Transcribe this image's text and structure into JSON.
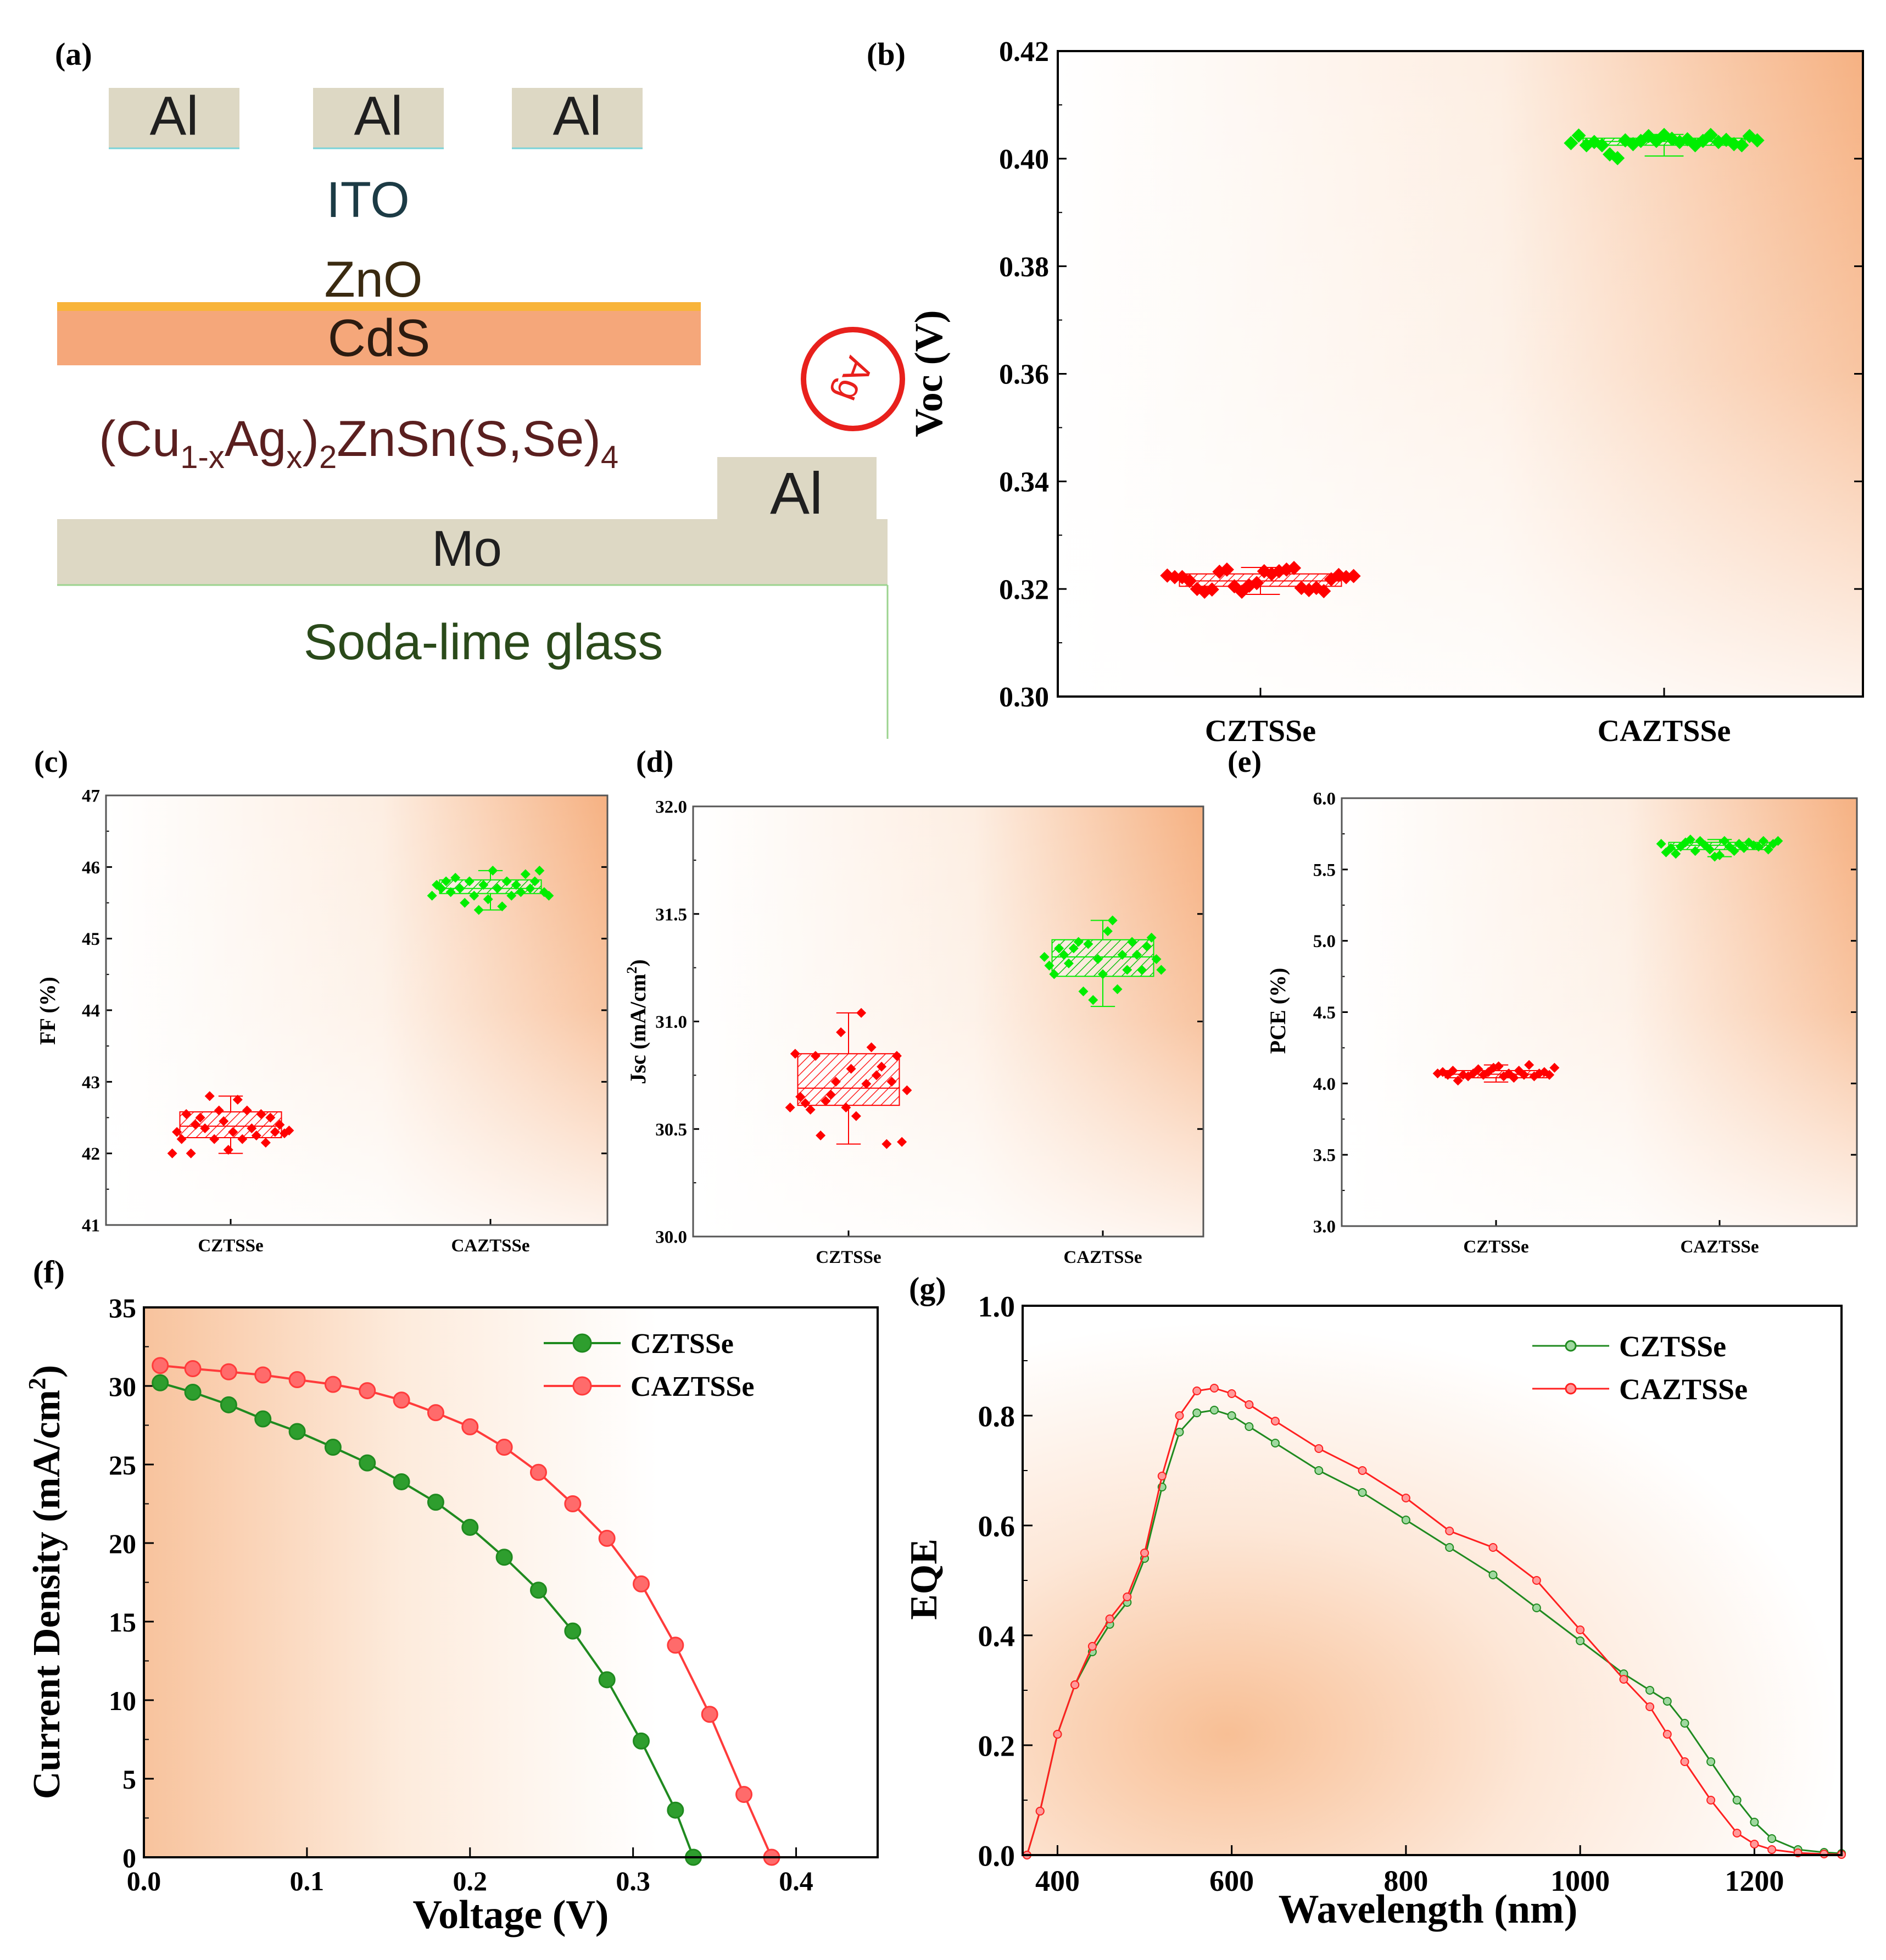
{
  "figure": {
    "panel_labels": {
      "a": "(a)",
      "b": "(b)",
      "c": "(c)",
      "d": "(d)",
      "e": "(e)",
      "f": "(f)",
      "g": "(g)"
    }
  },
  "device": {
    "top_contacts": [
      "Al",
      "Al",
      "Al"
    ],
    "ito": "ITO",
    "zno": "ZnO",
    "cds": "CdS",
    "absorber": {
      "prefix": "(Cu",
      "sub1": "1-x",
      "mid": "Ag",
      "sub2": "x",
      "mid2": ")",
      "sub3": "2",
      "tail": "ZnSn(S,Se)",
      "sub4": "4"
    },
    "side_contact": "Al",
    "back_contact": "Mo",
    "substrate": "Soda-lime glass",
    "ag_badge": "Ag",
    "colors": {
      "contact": "#ddd8c4",
      "cds": "#f5a77a",
      "cds_top": "#f8b43a",
      "ag": "#e8201c"
    }
  },
  "chart_data": [
    {
      "id": "b",
      "type": "box",
      "categories": [
        "CZTSSe",
        "CAZTSSe"
      ],
      "title": "",
      "xlabel": "",
      "ylabel": "Voc (V)",
      "ylim": [
        0.3,
        0.42
      ],
      "yticks": [
        "0.30",
        "0.32",
        "0.34",
        "0.36",
        "0.38",
        "0.40",
        "0.42"
      ],
      "groups": [
        {
          "name": "CZTSSe",
          "color": "#ff0000",
          "q1": 0.3205,
          "median": 0.3215,
          "q3": 0.3228,
          "whisker_low": 0.319,
          "whisker_high": 0.324,
          "points": [
            0.3225,
            0.3222,
            0.3222,
            0.3215,
            0.32,
            0.3195,
            0.3199,
            0.3232,
            0.3236,
            0.3205,
            0.3195,
            0.3206,
            0.3211,
            0.3233,
            0.3228,
            0.3233,
            0.3236,
            0.3239,
            0.3202,
            0.3198,
            0.3202,
            0.3196,
            0.3218,
            0.3226,
            0.3222,
            0.3224
          ]
        },
        {
          "name": "CAZTSSe",
          "color": "#00ee00",
          "q1": 0.4025,
          "median": 0.4032,
          "q3": 0.4038,
          "whisker_low": 0.4005,
          "whisker_high": 0.4045,
          "points": [
            0.4029,
            0.4043,
            0.4025,
            0.4031,
            0.4025,
            0.4008,
            0.4001,
            0.4034,
            0.4027,
            0.4033,
            0.4042,
            0.4033,
            0.4044,
            0.4037,
            0.4031,
            0.4036,
            0.4025,
            0.4033,
            0.4044,
            0.4031,
            0.4035,
            0.4027,
            0.4025,
            0.4042,
            0.4034
          ]
        }
      ]
    },
    {
      "id": "c",
      "type": "box",
      "categories": [
        "CZTSSe",
        "CAZTSSe"
      ],
      "title": "",
      "xlabel": "",
      "ylabel": "FF (%)",
      "ylim": [
        41,
        47
      ],
      "yticks": [
        "41",
        "42",
        "43",
        "44",
        "45",
        "46",
        "47"
      ],
      "groups": [
        {
          "name": "CZTSSe",
          "color": "#ff0000",
          "q1": 42.22,
          "median": 42.38,
          "q3": 42.58,
          "whisker_low": 42.0,
          "whisker_high": 42.8,
          "points": [
            42.0,
            42.3,
            42.2,
            42.55,
            42.0,
            42.4,
            42.5,
            42.35,
            42.8,
            42.2,
            42.6,
            42.45,
            42.05,
            42.3,
            42.75,
            42.2,
            42.6,
            42.35,
            42.25,
            42.55,
            42.15,
            42.5,
            42.3,
            42.4,
            42.28,
            42.32
          ]
        },
        {
          "name": "CAZTSSe",
          "color": "#00ee00",
          "q1": 45.63,
          "median": 45.7,
          "q3": 45.82,
          "whisker_low": 45.4,
          "whisker_high": 45.95,
          "points": [
            45.6,
            45.75,
            45.7,
            45.8,
            45.65,
            45.85,
            45.7,
            45.5,
            45.8,
            45.6,
            45.4,
            45.75,
            45.55,
            45.95,
            45.7,
            45.45,
            45.8,
            45.6,
            45.75,
            45.65,
            45.9,
            45.7,
            45.8,
            45.95,
            45.65,
            45.6
          ]
        }
      ]
    },
    {
      "id": "d",
      "type": "box",
      "categories": [
        "CZTSSe",
        "CAZTSSe"
      ],
      "title": "",
      "xlabel": "",
      "ylabel": "Jsc (mA/cm2)",
      "ylim": [
        30.0,
        32.0
      ],
      "yticks": [
        "30.0",
        "30.5",
        "31.0",
        "31.5",
        "32.0"
      ],
      "groups": [
        {
          "name": "CZTSSe",
          "color": "#ff0000",
          "q1": 30.61,
          "median": 30.69,
          "q3": 30.85,
          "whisker_low": 30.43,
          "whisker_high": 31.04,
          "points": [
            30.6,
            30.85,
            30.65,
            30.62,
            30.59,
            30.84,
            30.47,
            30.63,
            30.66,
            30.72,
            30.95,
            30.6,
            30.78,
            30.56,
            31.04,
            30.71,
            30.88,
            30.75,
            30.79,
            30.43,
            30.72,
            30.84,
            30.44,
            30.68
          ]
        },
        {
          "name": "CAZTSSe",
          "color": "#00ee00",
          "q1": 31.21,
          "median": 31.3,
          "q3": 31.38,
          "whisker_low": 31.07,
          "whisker_high": 31.47,
          "points": [
            31.3,
            31.26,
            31.22,
            31.34,
            31.31,
            31.27,
            31.34,
            31.37,
            31.14,
            31.36,
            31.1,
            31.29,
            31.22,
            31.42,
            31.47,
            31.15,
            31.31,
            31.24,
            31.37,
            31.31,
            31.24,
            31.35,
            31.39,
            31.29,
            31.24
          ]
        }
      ]
    },
    {
      "id": "e",
      "type": "box",
      "categories": [
        "CZTSSe",
        "CAZTSSe"
      ],
      "title": "",
      "xlabel": "",
      "ylabel": "PCE (%)",
      "ylim": [
        3.0,
        6.0
      ],
      "yticks": [
        "3.0",
        "3.5",
        "4.0",
        "4.5",
        "5.0",
        "5.5",
        "6.0"
      ],
      "groups": [
        {
          "name": "CZTSSe",
          "color": "#ff0000",
          "q1": 4.04,
          "median": 4.065,
          "q3": 4.09,
          "whisker_low": 4.01,
          "whisker_high": 4.13,
          "points": [
            4.07,
            4.08,
            4.06,
            4.09,
            4.02,
            4.06,
            4.05,
            4.07,
            4.1,
            4.06,
            4.08,
            4.11,
            4.12,
            4.05,
            4.07,
            4.04,
            4.09,
            4.06,
            4.13,
            4.05,
            4.07,
            4.08,
            4.06,
            4.11
          ]
        },
        {
          "name": "CAZTSSe",
          "color": "#00ee00",
          "q1": 5.64,
          "median": 5.67,
          "q3": 5.69,
          "whisker_low": 5.59,
          "whisker_high": 5.71,
          "points": [
            5.68,
            5.62,
            5.65,
            5.61,
            5.66,
            5.69,
            5.71,
            5.63,
            5.7,
            5.67,
            5.64,
            5.59,
            5.6,
            5.7,
            5.66,
            5.63,
            5.68,
            5.65,
            5.69,
            5.67,
            5.66,
            5.7,
            5.64,
            5.68,
            5.7
          ]
        }
      ]
    },
    {
      "id": "f",
      "type": "line",
      "title": "",
      "xlabel": "Voltage (V)",
      "ylabel": "Current Density (mA/cm2)",
      "xlim": [
        0.0,
        0.45
      ],
      "ylim": [
        0,
        35
      ],
      "xticks": [
        "0.0",
        "0.1",
        "0.2",
        "0.3",
        "0.4"
      ],
      "yticks": [
        "0",
        "5",
        "10",
        "15",
        "20",
        "25",
        "30",
        "35"
      ],
      "legend": "top-right",
      "series": [
        {
          "name": "CZTSSe",
          "color": "#1f8a1f",
          "x": [
            0.01,
            0.03,
            0.052,
            0.073,
            0.094,
            0.116,
            0.137,
            0.158,
            0.179,
            0.2,
            0.221,
            0.242,
            0.263,
            0.284,
            0.305,
            0.326,
            0.337
          ],
          "y": [
            30.2,
            29.6,
            28.8,
            27.9,
            27.1,
            26.1,
            25.1,
            23.9,
            22.6,
            21.0,
            19.1,
            17.0,
            14.4,
            11.3,
            7.4,
            3.0,
            0.0
          ]
        },
        {
          "name": "CAZTSSe",
          "color": "#ff3b3b",
          "x": [
            0.01,
            0.03,
            0.052,
            0.073,
            0.094,
            0.116,
            0.137,
            0.158,
            0.179,
            0.2,
            0.221,
            0.242,
            0.263,
            0.284,
            0.305,
            0.326,
            0.347,
            0.368,
            0.385
          ],
          "y": [
            31.3,
            31.1,
            30.9,
            30.7,
            30.4,
            30.1,
            29.7,
            29.1,
            28.3,
            27.4,
            26.1,
            24.5,
            22.5,
            20.3,
            17.4,
            13.5,
            9.1,
            4.0,
            0.0
          ]
        }
      ]
    },
    {
      "id": "g",
      "type": "line",
      "title": "",
      "xlabel": "Wavelength (nm)",
      "ylabel": "EQE",
      "xlim": [
        360,
        1300
      ],
      "ylim": [
        0.0,
        1.0
      ],
      "xticks": [
        "400",
        "600",
        "800",
        "1000",
        "1200"
      ],
      "yticks": [
        "0.0",
        "0.2",
        "0.4",
        "0.6",
        "0.8",
        "1.0"
      ],
      "legend": "top-right",
      "series": [
        {
          "name": "CZTSSe",
          "color": "#1f8a1f",
          "x": [
            365,
            380,
            400,
            420,
            440,
            460,
            480,
            500,
            520,
            540,
            560,
            580,
            600,
            620,
            650,
            700,
            750,
            800,
            850,
            900,
            950,
            1000,
            1050,
            1080,
            1100,
            1120,
            1150,
            1180,
            1200,
            1220,
            1250,
            1280,
            1300
          ],
          "y": [
            0.0,
            0.08,
            0.22,
            0.31,
            0.37,
            0.42,
            0.46,
            0.54,
            0.67,
            0.77,
            0.805,
            0.81,
            0.8,
            0.78,
            0.75,
            0.7,
            0.66,
            0.61,
            0.56,
            0.51,
            0.45,
            0.39,
            0.33,
            0.3,
            0.28,
            0.24,
            0.17,
            0.1,
            0.06,
            0.03,
            0.01,
            0.005,
            0.003
          ]
        },
        {
          "name": "CAZTSSe",
          "color": "#ff2020",
          "x": [
            365,
            380,
            400,
            420,
            440,
            460,
            480,
            500,
            520,
            540,
            560,
            580,
            600,
            620,
            650,
            700,
            750,
            800,
            850,
            900,
            950,
            1000,
            1050,
            1080,
            1100,
            1120,
            1150,
            1180,
            1200,
            1220,
            1250,
            1280,
            1300
          ],
          "y": [
            0.0,
            0.08,
            0.22,
            0.31,
            0.38,
            0.43,
            0.47,
            0.55,
            0.69,
            0.8,
            0.845,
            0.85,
            0.84,
            0.82,
            0.79,
            0.74,
            0.7,
            0.65,
            0.59,
            0.56,
            0.5,
            0.41,
            0.32,
            0.27,
            0.22,
            0.17,
            0.1,
            0.04,
            0.02,
            0.01,
            0.004,
            0.002,
            0.001
          ]
        }
      ]
    }
  ]
}
